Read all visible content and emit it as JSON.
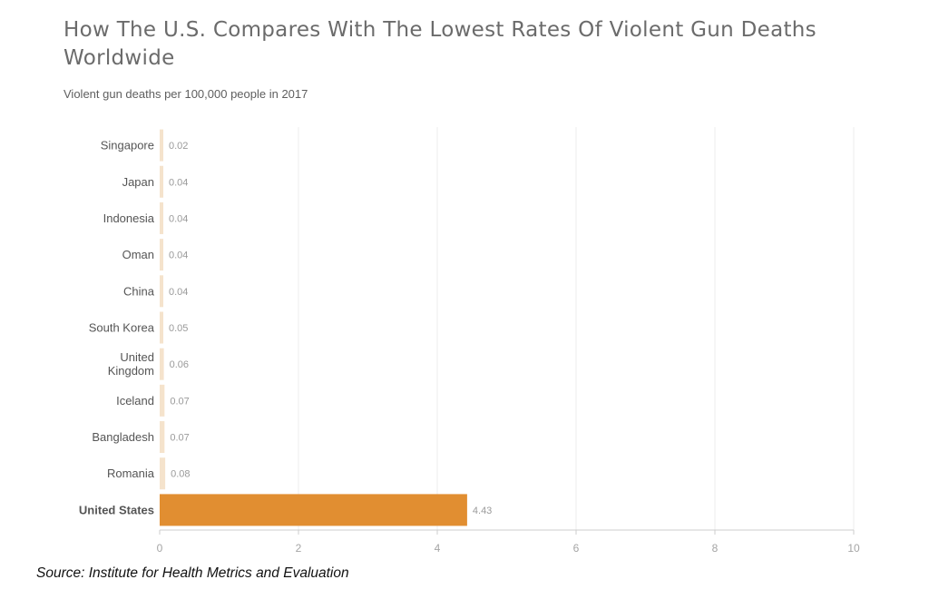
{
  "chart_data": {
    "type": "bar",
    "orientation": "horizontal",
    "title": "How The U.S. Compares With The Lowest Rates Of Violent Gun Deaths Worldwide",
    "subtitle": "Violent gun deaths per 100,000 people in 2017",
    "xlabel": "",
    "ylabel": "",
    "categories": [
      "Singapore",
      "Japan",
      "Indonesia",
      "Oman",
      "China",
      "South Korea",
      "United Kingdom",
      "Iceland",
      "Bangladesh",
      "Romania",
      "United States"
    ],
    "category_lines": [
      [
        "Singapore"
      ],
      [
        "Japan"
      ],
      [
        "Indonesia"
      ],
      [
        "Oman"
      ],
      [
        "China"
      ],
      [
        "South Korea"
      ],
      [
        "United",
        "Kingdom"
      ],
      [
        "Iceland"
      ],
      [
        "Bangladesh"
      ],
      [
        "Romania"
      ],
      [
        "United States"
      ]
    ],
    "values": [
      0.02,
      0.04,
      0.04,
      0.04,
      0.04,
      0.05,
      0.06,
      0.07,
      0.07,
      0.08,
      4.43
    ],
    "value_labels": [
      "0.02",
      "0.04",
      "0.04",
      "0.04",
      "0.04",
      "0.05",
      "0.06",
      "0.07",
      "0.07",
      "0.08",
      "4.43"
    ],
    "highlight": "United States",
    "xlim": [
      0,
      10
    ],
    "xticks": [
      0,
      2,
      4,
      6,
      8,
      10
    ],
    "xtick_labels": [
      "0",
      "2",
      "4",
      "6",
      "8",
      "10"
    ],
    "grid": true,
    "colors": {
      "bar": "#f5e3cc",
      "highlight_bar": "#e18e31",
      "grid": "#eeeeee",
      "axis": "#cccccc"
    },
    "source": "Source: Institute for Health Metrics and Evaluation"
  }
}
